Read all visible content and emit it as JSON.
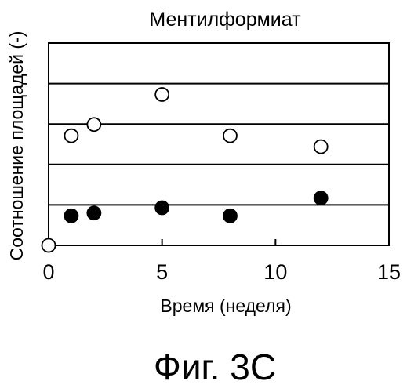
{
  "chart_data": {
    "type": "scatter",
    "title": "Ментилформиат",
    "xlabel": "Время (неделя)",
    "ylabel": "Соотношение площадей (-)",
    "xlim": [
      0,
      15
    ],
    "ylim": [
      0,
      5
    ],
    "x_ticks": [
      "0",
      "5",
      "10",
      "15"
    ],
    "y_ticks_labeled": false,
    "horizontal_gridlines": [
      1,
      2,
      3,
      4,
      5
    ],
    "grid": "horizontal",
    "legend": "none",
    "series": [
      {
        "marker": "open-circle",
        "points": [
          {
            "x": 0,
            "y": 0
          },
          {
            "x": 1,
            "y": 2.71
          },
          {
            "x": 2,
            "y": 2.99
          },
          {
            "x": 5,
            "y": 3.73
          },
          {
            "x": 8,
            "y": 2.71
          },
          {
            "x": 12,
            "y": 2.44
          }
        ]
      },
      {
        "marker": "filled-circle",
        "points": [
          {
            "x": 1,
            "y": 0.73
          },
          {
            "x": 2,
            "y": 0.8
          },
          {
            "x": 5,
            "y": 0.93
          },
          {
            "x": 8,
            "y": 0.73
          },
          {
            "x": 12,
            "y": 1.17
          }
        ]
      }
    ]
  },
  "figure_caption": "Фиг. 3С"
}
